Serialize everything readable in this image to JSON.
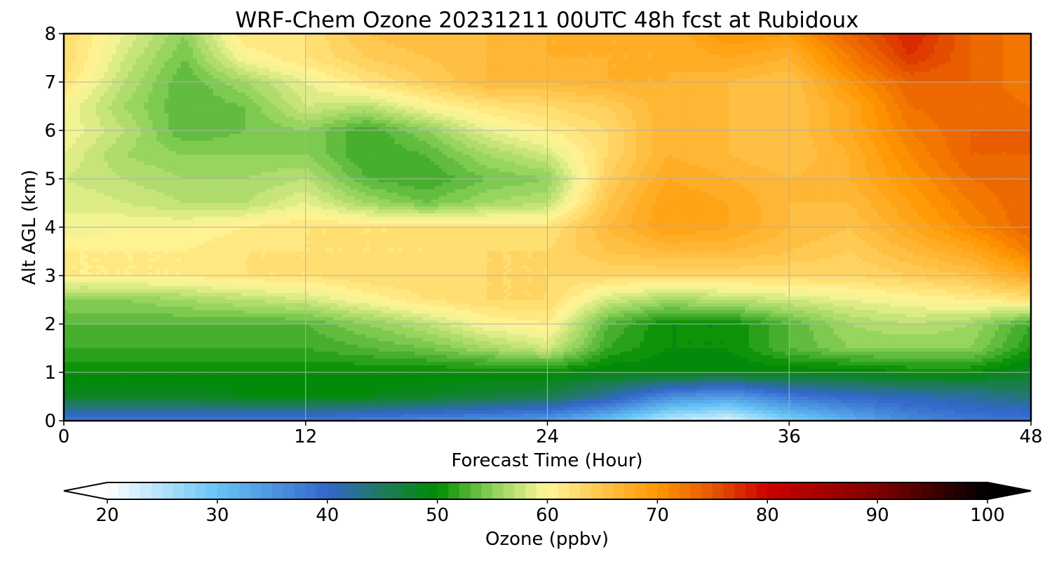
{
  "chart_data": {
    "type": "heatmap",
    "title": "WRF-Chem Ozone  20231211 00UTC 48h fcst at Rubidoux",
    "xlabel": "Forecast Time (Hour)",
    "ylabel": "Alt AGL (km)",
    "xlim": [
      0,
      48
    ],
    "ylim": [
      0,
      8
    ],
    "x_ticks": [
      "0",
      "12",
      "24",
      "36",
      "48"
    ],
    "y_ticks": [
      "0",
      "1",
      "2",
      "3",
      "4",
      "5",
      "6",
      "7",
      "8"
    ],
    "grid": true,
    "z_units": "ppbv",
    "x": [
      0,
      3,
      6,
      9,
      12,
      15,
      18,
      21,
      24,
      27,
      30,
      33,
      36,
      39,
      42,
      45,
      48
    ],
    "y": [
      0,
      0.5,
      1,
      1.5,
      2,
      2.5,
      3,
      3.5,
      4,
      4.5,
      5,
      5.5,
      6,
      6.5,
      7,
      7.5,
      8
    ],
    "z": [
      [
        38,
        38,
        38,
        38,
        38,
        37,
        36,
        35,
        34,
        30,
        24,
        22,
        28,
        32,
        36,
        38,
        38
      ],
      [
        48,
        48,
        48,
        49,
        49,
        49,
        48,
        47,
        46,
        42,
        36,
        34,
        38,
        40,
        41,
        42,
        44
      ],
      [
        50,
        50,
        50,
        50,
        50,
        50,
        50,
        50,
        50,
        49,
        49,
        49,
        49,
        49,
        50,
        50,
        48
      ],
      [
        52,
        52,
        52,
        52,
        52,
        53,
        54,
        56,
        58,
        52,
        50,
        50,
        53,
        55,
        55,
        55,
        51
      ],
      [
        53,
        53,
        53,
        53,
        53,
        55,
        57,
        60,
        61,
        53,
        50,
        50,
        53,
        56,
        57,
        56,
        52
      ],
      [
        55,
        55,
        56,
        57,
        58,
        60,
        62,
        63,
        63,
        58,
        56,
        57,
        58,
        59,
        60,
        61,
        62
      ],
      [
        61,
        61,
        61,
        62,
        62,
        63,
        63,
        63,
        63,
        63,
        63,
        63,
        63,
        63,
        64,
        65,
        68
      ],
      [
        61,
        61,
        61,
        62,
        62,
        62,
        62,
        63,
        63,
        65,
        66,
        66,
        65,
        64,
        66,
        68,
        72
      ],
      [
        59,
        60,
        60,
        61,
        62,
        62,
        62,
        62,
        62,
        66,
        69,
        68,
        66,
        65,
        68,
        71,
        74
      ],
      [
        59,
        58,
        57,
        57,
        59,
        56,
        54,
        56,
        57,
        65,
        69,
        68,
        66,
        66,
        69,
        72,
        74
      ],
      [
        58,
        57,
        56,
        56,
        57,
        53,
        52,
        54,
        55,
        64,
        68,
        67,
        66,
        67,
        70,
        73,
        74
      ],
      [
        59,
        56,
        55,
        55,
        55,
        52,
        53,
        56,
        58,
        63,
        67,
        66,
        65,
        67,
        71,
        74,
        74
      ],
      [
        60,
        57,
        53,
        54,
        55,
        52,
        55,
        59,
        61,
        63,
        67,
        66,
        65,
        68,
        72,
        74,
        74
      ],
      [
        60,
        56,
        53,
        54,
        58,
        57,
        60,
        62,
        63,
        64,
        67,
        66,
        65,
        68,
        73,
        74,
        73
      ],
      [
        62,
        57,
        53,
        56,
        59,
        62,
        64,
        66,
        66,
        67,
        67,
        66,
        65,
        70,
        74,
        74,
        72
      ],
      [
        63,
        58,
        54,
        60,
        62,
        64,
        65,
        66,
        67,
        67,
        67,
        68,
        67,
        72,
        77,
        74,
        72
      ],
      [
        63,
        59,
        55,
        62,
        62,
        65,
        66,
        66,
        67,
        67,
        67,
        70,
        69,
        74,
        78,
        74,
        72
      ]
    ],
    "colorbar": {
      "label": "Ozone  (ppbv)",
      "min": 20,
      "max": 100,
      "step": 1,
      "extend": "both",
      "ticks": [
        "20",
        "30",
        "40",
        "50",
        "60",
        "70",
        "80",
        "90",
        "100"
      ],
      "stops": [
        {
          "v": 20,
          "c": "#ffffff"
        },
        {
          "v": 30,
          "c": "#66c4f5"
        },
        {
          "v": 40,
          "c": "#3366cc"
        },
        {
          "v": 45,
          "c": "#1f7a5f"
        },
        {
          "v": 50,
          "c": "#008c00"
        },
        {
          "v": 55,
          "c": "#8cd15a"
        },
        {
          "v": 60,
          "c": "#fff799"
        },
        {
          "v": 65,
          "c": "#ffc44a"
        },
        {
          "v": 70,
          "c": "#ff9600"
        },
        {
          "v": 75,
          "c": "#e65500"
        },
        {
          "v": 80,
          "c": "#cc0000"
        },
        {
          "v": 90,
          "c": "#800000"
        },
        {
          "v": 100,
          "c": "#000000"
        }
      ]
    }
  }
}
